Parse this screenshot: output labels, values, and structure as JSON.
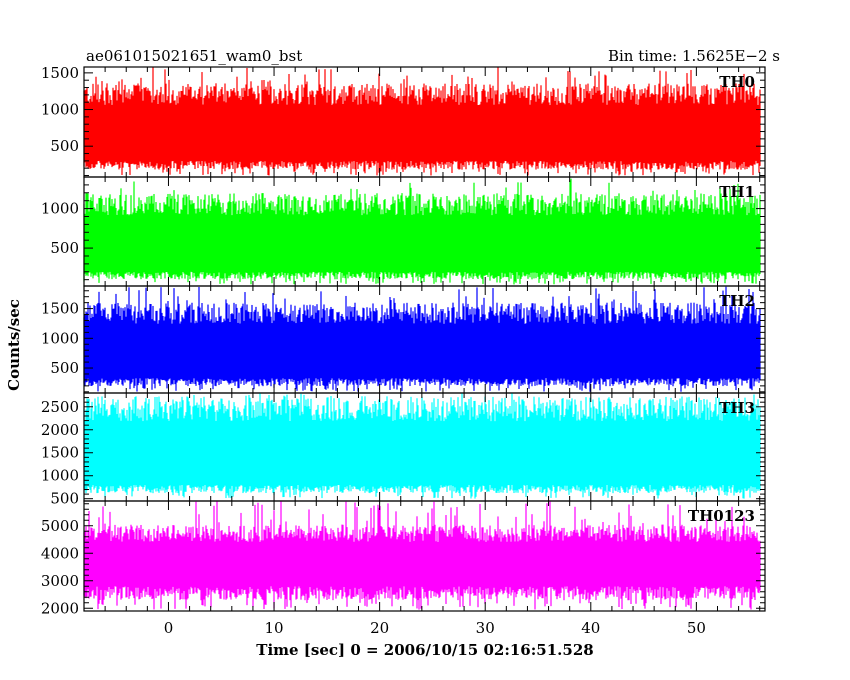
{
  "header": {
    "left_title": "ae061015021651_wam0_bst",
    "right_title": "Bin time: 1.5625E−2 s"
  },
  "chart_data": {
    "type": "line",
    "xlabel": "Time [sec] 0 = 2006/10/15 02:16:51.528",
    "ylabel": "Counts/sec",
    "xlim": [
      -8,
      56.5
    ],
    "x_ticks": [
      0,
      10,
      20,
      30,
      40,
      50
    ],
    "x_range_data": [
      -8,
      56
    ],
    "panels": [
      {
        "name": "TH0",
        "color": "#ff0000",
        "ylim": [
          80,
          1580
        ],
        "y_ticks": [
          500,
          1000,
          1500
        ],
        "band": {
          "min": 100,
          "q_low": 300,
          "q_high": 1150,
          "max": 1580
        }
      },
      {
        "name": "TH1",
        "color": "#00ff00",
        "ylim": [
          20,
          1400
        ],
        "y_ticks": [
          500,
          1000
        ],
        "band": {
          "min": 40,
          "q_low": 200,
          "q_high": 1000,
          "max": 1380
        }
      },
      {
        "name": "TH2",
        "color": "#0000ff",
        "ylim": [
          80,
          1880
        ],
        "y_ticks": [
          500,
          1000,
          1500
        ],
        "band": {
          "min": 100,
          "q_low": 330,
          "q_high": 1350,
          "max": 1880
        }
      },
      {
        "name": "TH3",
        "color": "#00ffff",
        "ylim": [
          450,
          2800
        ],
        "y_ticks": [
          500,
          1000,
          1500,
          2000,
          2500
        ],
        "band": {
          "min": 500,
          "q_low": 800,
          "q_high": 2350,
          "max": 2800
        }
      },
      {
        "name": "TH0123",
        "color": "#ff00ff",
        "ylim": [
          1900,
          5900
        ],
        "y_ticks": [
          2000,
          3000,
          4000,
          5000
        ],
        "band": {
          "min": 1950,
          "q_low": 2800,
          "q_high": 4600,
          "max": 5900
        }
      }
    ]
  }
}
